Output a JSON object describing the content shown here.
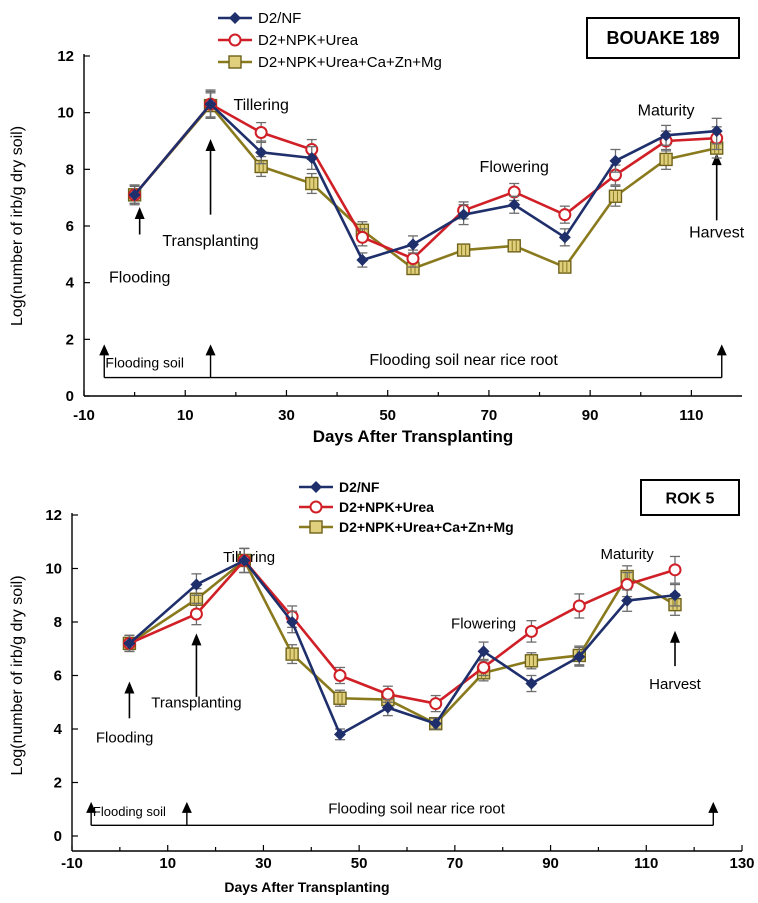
{
  "chart_data": [
    {
      "type": "line",
      "title": "BOUAKE 189",
      "xlabel": "Days After Transplanting",
      "ylabel": "Log(number of irb/g dry soil)",
      "xlim": [
        -10,
        120
      ],
      "ylim": [
        0,
        12
      ],
      "xticks": [
        "-10",
        "10",
        "30",
        "50",
        "70",
        "90",
        "110"
      ],
      "yticks": [
        "0",
        "2",
        "4",
        "6",
        "8",
        "10",
        "12"
      ],
      "grid": false,
      "legend_position": "top-left",
      "series": [
        {
          "name": "D2/NF",
          "marker": "diamond",
          "color": "#1f2f6b",
          "x": [
            0,
            15,
            25,
            35,
            45,
            55,
            65,
            75,
            85,
            95,
            105,
            115
          ],
          "y": [
            7.1,
            10.3,
            8.6,
            8.4,
            4.8,
            5.35,
            6.4,
            6.75,
            5.6,
            8.3,
            9.2,
            9.35
          ],
          "err": [
            0.35,
            0.5,
            0.4,
            0.4,
            0.25,
            0.3,
            0.35,
            0.3,
            0.3,
            0.4,
            0.35,
            0.45
          ]
        },
        {
          "name": "D2+NPK+Urea",
          "marker": "open-circle",
          "color": "#d01f26",
          "x": [
            0,
            15,
            25,
            35,
            45,
            55,
            65,
            75,
            85,
            95,
            105,
            115
          ],
          "y": [
            7.1,
            10.3,
            9.3,
            8.7,
            5.6,
            4.85,
            6.55,
            7.2,
            6.4,
            7.8,
            9.0,
            9.1
          ],
          "err": [
            0.3,
            0.45,
            0.35,
            0.35,
            0.3,
            0.3,
            0.3,
            0.3,
            0.3,
            0.35,
            0.35,
            0.4
          ]
        },
        {
          "name": "D2+NPK+Urea+Ca+Zn+Mg",
          "marker": "square",
          "color": "#8a7a1e",
          "x": [
            0,
            15,
            25,
            35,
            45,
            55,
            65,
            75,
            85,
            95,
            105,
            115
          ],
          "y": [
            7.1,
            10.25,
            8.1,
            7.5,
            5.85,
            4.5,
            5.15,
            5.3,
            4.55,
            7.05,
            8.35,
            8.75
          ],
          "err": [
            0.3,
            0.45,
            0.35,
            0.35,
            0.3,
            0.2,
            0.2,
            0.2,
            0.15,
            0.35,
            0.35,
            0.35
          ]
        }
      ],
      "annotations": [
        {
          "text": "Tillering",
          "x": 25,
          "y": 10.1
        },
        {
          "text": "Flowering",
          "x": 75,
          "y": 7.9
        },
        {
          "text": "Maturity",
          "x": 105,
          "y": 9.9
        },
        {
          "text": "Flooding",
          "x": 1,
          "y": 4.0
        },
        {
          "text": "Transplanting",
          "x": 15,
          "y": 5.3
        },
        {
          "text": "Harvest",
          "x": 115,
          "y": 5.6
        },
        {
          "text": "Flooding soil",
          "x": 2,
          "y": 1.0
        },
        {
          "text": "Flooding soil near rice root",
          "x": 65,
          "y": 1.1
        }
      ],
      "event_arrows": [
        {
          "label": "Flooding",
          "x": 1,
          "y_from": 5.7,
          "y_to": 6.6
        },
        {
          "label": "Transplanting",
          "x": 15,
          "y_from": 6.4,
          "y_to": 9.0
        },
        {
          "label": "Harvest",
          "x": 115,
          "y_from": 6.2,
          "y_to": 8.5
        }
      ],
      "period_bracket": {
        "x_start": -6,
        "x_flood_end": 15,
        "x_end": 116,
        "y": 0.65,
        "y_top": 1.75
      }
    },
    {
      "type": "line",
      "title": "ROK 5",
      "xlabel": "Days After Transplanting",
      "ylabel": "Log(number of irb/g dry soil)",
      "xlim": [
        -10,
        130
      ],
      "ylim": [
        0,
        12
      ],
      "xticks": [
        "-10",
        "10",
        "30",
        "50",
        "70",
        "90",
        "110",
        "130"
      ],
      "yticks": [
        "0",
        "2",
        "4",
        "6",
        "8",
        "10",
        "12"
      ],
      "grid": false,
      "legend_position": "top-center",
      "series": [
        {
          "name": "D2/NF",
          "marker": "diamond",
          "color": "#1f2f6b",
          "x": [
            2,
            16,
            26,
            36,
            46,
            56,
            66,
            76,
            86,
            96,
            106,
            116
          ],
          "y": [
            7.2,
            9.4,
            10.3,
            8.0,
            3.8,
            4.8,
            4.2,
            6.9,
            5.7,
            6.7,
            8.8,
            9.0
          ],
          "err": [
            0.3,
            0.4,
            0.45,
            0.4,
            0.2,
            0.3,
            0.2,
            0.35,
            0.3,
            0.35,
            0.4,
            0.4
          ]
        },
        {
          "name": "D2+NPK+Urea",
          "marker": "open-circle",
          "color": "#d01f26",
          "x": [
            2,
            16,
            26,
            36,
            46,
            56,
            66,
            76,
            86,
            96,
            106,
            116
          ],
          "y": [
            7.2,
            8.3,
            10.3,
            8.2,
            6.0,
            5.3,
            4.95,
            6.3,
            7.65,
            8.6,
            9.4,
            9.95
          ],
          "err": [
            0.3,
            0.4,
            0.45,
            0.4,
            0.3,
            0.3,
            0.3,
            0.3,
            0.4,
            0.45,
            0.45,
            0.5
          ]
        },
        {
          "name": "D2+NPK+Urea+Ca+Zn+Mg",
          "marker": "square",
          "color": "#8a7a1e",
          "x": [
            2,
            16,
            26,
            36,
            46,
            56,
            66,
            76,
            86,
            96,
            106,
            116
          ],
          "y": [
            7.2,
            8.85,
            10.3,
            6.8,
            5.15,
            5.1,
            4.2,
            6.1,
            6.55,
            6.75,
            9.7,
            8.65
          ],
          "err": [
            0.3,
            0.4,
            0.45,
            0.35,
            0.3,
            0.3,
            0.2,
            0.3,
            0.3,
            0.35,
            0.4,
            0.4
          ]
        }
      ],
      "annotations": [
        {
          "text": "Tillering",
          "x": 27,
          "y": 10.25
        },
        {
          "text": "Flowering",
          "x": 76,
          "y": 7.75
        },
        {
          "text": "Maturity",
          "x": 106,
          "y": 10.35
        },
        {
          "text": "Flooding",
          "x": 1,
          "y": 3.5
        },
        {
          "text": "Transplanting",
          "x": 16,
          "y": 4.8
        },
        {
          "text": "Harvest",
          "x": 116,
          "y": 5.5
        },
        {
          "text": "Flooding soil",
          "x": 2,
          "y": 0.75
        },
        {
          "text": "Flooding soil near rice root",
          "x": 62,
          "y": 0.85
        }
      ],
      "event_arrows": [
        {
          "label": "Flooding",
          "x": 2,
          "y_from": 4.4,
          "y_to": 5.7
        },
        {
          "label": "Transplanting",
          "x": 16,
          "y_from": 5.2,
          "y_to": 7.5
        },
        {
          "label": "Harvest",
          "x": 116,
          "y_from": 6.35,
          "y_to": 7.6
        }
      ],
      "period_bracket": {
        "x_start": -6,
        "x_flood_end": 14,
        "x_end": 124,
        "y": 0.4,
        "y_top": 1.2
      }
    }
  ]
}
